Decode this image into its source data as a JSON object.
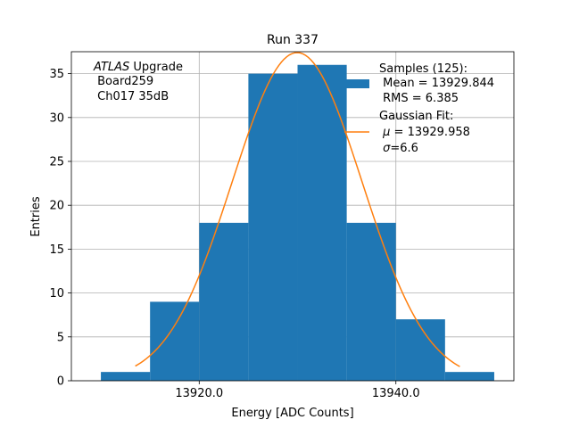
{
  "chart_data": {
    "type": "bar",
    "title": "Run 337",
    "xlabel": "Energy [ADC Counts]",
    "ylabel": "Entries",
    "xlim": [
      13907,
      13952
    ],
    "ylim": [
      0,
      37.5
    ],
    "grid": true,
    "x_ticks": [
      {
        "value": 13920,
        "label": "13920.0"
      },
      {
        "value": 13940,
        "label": "13940.0"
      }
    ],
    "y_ticks": [
      {
        "value": 0,
        "label": "0"
      },
      {
        "value": 5,
        "label": "5"
      },
      {
        "value": 10,
        "label": "10"
      },
      {
        "value": 15,
        "label": "15"
      },
      {
        "value": 20,
        "label": "20"
      },
      {
        "value": 25,
        "label": "25"
      },
      {
        "value": 30,
        "label": "30"
      },
      {
        "value": 35,
        "label": "35"
      }
    ],
    "bins": [
      {
        "x0": 13910,
        "x1": 13915,
        "count": 1
      },
      {
        "x0": 13915,
        "x1": 13920,
        "count": 9
      },
      {
        "x0": 13920,
        "x1": 13925,
        "count": 18
      },
      {
        "x0": 13925,
        "x1": 13930,
        "count": 35
      },
      {
        "x0": 13930,
        "x1": 13935,
        "count": 36
      },
      {
        "x0": 13935,
        "x1": 13940,
        "count": 18
      },
      {
        "x0": 13940,
        "x1": 13945,
        "count": 7
      },
      {
        "x0": 13945,
        "x1": 13950,
        "count": 1
      }
    ],
    "fit": {
      "mu": 13929.958,
      "sigma": 6.6,
      "amplitude": 37.4,
      "x_range": [
        13913.5,
        13946.5
      ]
    },
    "colors": {
      "bar": "#1f77b4",
      "fit": "#ff7f0e",
      "grid": "#b0b0b0"
    },
    "annotation": {
      "atlas_italic": "ATLAS",
      "atlas_rest": " Upgrade",
      "line2": " Board259",
      "line3": " Ch017 35dB"
    },
    "legend": {
      "placement": "top-right",
      "samples_title": "Samples (125):",
      "samples_mean": " Mean = 13929.844",
      "samples_rms": " RMS = 6.385",
      "fit_title": "Gaussian Fit:",
      "fit_mu_symbol": "μ",
      "fit_mu_rest": " = 13929.958",
      "fit_sigma_symbol": "σ",
      "fit_sigma_rest": "=6.6"
    }
  }
}
